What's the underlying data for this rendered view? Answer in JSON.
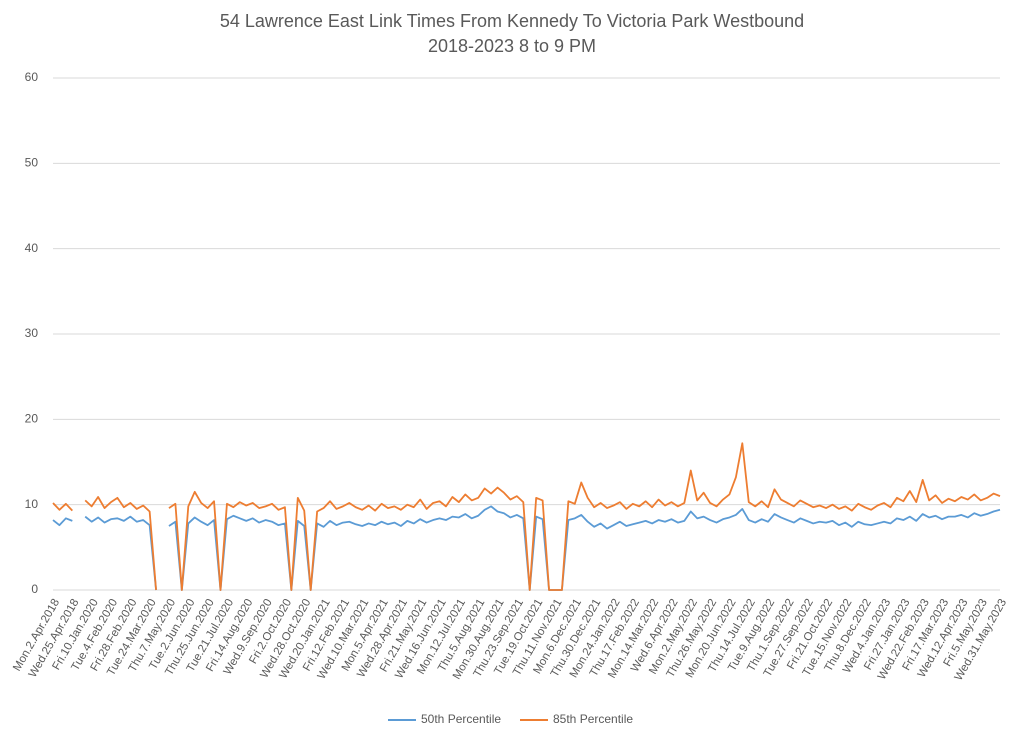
{
  "chart_data": {
    "type": "line",
    "title": "54 Lawrence East Link Times From Kennedy To Victoria Park Westbound",
    "subtitle": "2018-2023 8 to 9 PM",
    "categories": [
      "Mon.2.Apr.2018",
      null,
      null,
      "Wed.25.Apr.2018",
      null,
      null,
      "Fri.10.Jan.2020",
      null,
      null,
      "Tue.4.Feb.2020",
      null,
      null,
      "Fri.28.Feb.2020",
      null,
      null,
      "Tue.24.Mar.2020",
      null,
      null,
      "Thu.7.May.2020",
      null,
      null,
      "Tue.2.Jun.2020",
      null,
      null,
      "Thu.25.Jun.2020",
      null,
      null,
      "Tue.21.Jul.2020",
      null,
      null,
      "Fri.14.Aug.2020",
      null,
      null,
      "Wed.9.Sep.2020",
      null,
      null,
      "Fri.2.Oct.2020",
      null,
      null,
      "Wed.28.Oct.2020",
      null,
      null,
      "Wed.20.Jan.2021",
      null,
      null,
      "Fri.12.Feb.2021",
      null,
      null,
      "Wed.10.Mar.2021",
      null,
      null,
      "Mon.5.Apr.2021",
      null,
      null,
      "Wed.28.Apr.2021",
      null,
      null,
      "Fri.21.May.2021",
      null,
      null,
      "Wed.16.Jun.2021",
      null,
      null,
      "Mon.12.Jul.2021",
      null,
      null,
      "Thu.5.Aug.2021",
      null,
      null,
      "Mon.30.Aug.2021",
      null,
      null,
      "Thu.23.Sep.2021",
      null,
      null,
      "Tue.19.Oct.2021",
      null,
      null,
      "Thu.11.Nov.2021",
      null,
      null,
      "Mon.6.Dec.2021",
      null,
      null,
      "Thu.30.Dec.2021",
      null,
      null,
      "Mon.24.Jan.2022",
      null,
      null,
      "Thu.17.Feb.2022",
      null,
      null,
      "Mon.14.Mar.2022",
      null,
      null,
      "Wed.6.Apr.2022",
      null,
      null,
      "Mon.2.May.2022",
      null,
      null,
      "Thu.26.May.2022",
      null,
      null,
      "Mon.20.Jun.2022",
      null,
      null,
      "Thu.14.Jul.2022",
      null,
      null,
      "Tue.9.Aug.2022",
      null,
      null,
      "Thu.1.Sep.2022",
      null,
      null,
      "Tue.27.Sep.2022",
      null,
      null,
      "Fri.21.Oct.2022",
      null,
      null,
      "Tue.15.Nov.2022",
      null,
      null,
      "Thu.8.Dec.2022",
      null,
      null,
      "Wed.4.Jan.2023",
      null,
      null,
      "Fri.27.Jan.2023",
      null,
      null,
      "Wed.22.Feb.2023",
      null,
      null,
      "Fri.17.Mar.2023",
      null,
      null,
      "Wed.12.Apr.2023",
      null,
      null,
      "Fri.5.May.2023",
      null,
      null,
      "Wed.31.May.2023"
    ],
    "series": [
      {
        "name": "50th Percentile",
        "color": "#5b9bd5",
        "values": [
          8.2,
          7.6,
          8.4,
          8.1,
          null,
          8.6,
          8.0,
          8.5,
          7.9,
          8.3,
          8.4,
          8.1,
          8.6,
          8.0,
          8.2,
          7.6,
          0,
          null,
          7.5,
          8.0,
          0,
          7.8,
          8.5,
          8.0,
          7.6,
          8.2,
          0,
          8.3,
          8.7,
          8.4,
          8.1,
          8.4,
          7.9,
          8.2,
          8.0,
          7.6,
          7.8,
          0,
          8.1,
          7.5,
          0,
          7.8,
          7.4,
          8.1,
          7.6,
          7.9,
          8.0,
          7.7,
          7.5,
          7.8,
          7.6,
          8.0,
          7.7,
          7.9,
          7.5,
          8.1,
          7.8,
          8.3,
          7.9,
          8.2,
          8.4,
          8.2,
          8.6,
          8.5,
          8.9,
          8.4,
          8.7,
          9.4,
          9.8,
          9.2,
          9.0,
          8.5,
          8.8,
          8.4,
          0,
          8.6,
          8.3,
          0,
          0,
          0,
          8.2,
          8.4,
          8.8,
          8.0,
          7.4,
          7.8,
          7.2,
          7.6,
          8.0,
          7.5,
          7.7,
          7.9,
          8.1,
          7.8,
          8.2,
          8.0,
          8.3,
          7.9,
          8.1,
          9.2,
          8.4,
          8.6,
          8.2,
          7.9,
          8.3,
          8.5,
          8.8,
          9.5,
          8.2,
          7.9,
          8.3,
          8.0,
          8.9,
          8.5,
          8.2,
          7.9,
          8.4,
          8.1,
          7.8,
          8.0,
          7.9,
          8.1,
          7.6,
          7.9,
          7.4,
          8.0,
          7.7,
          7.6,
          7.8,
          8.0,
          7.8,
          8.4,
          8.2,
          8.6,
          8.1,
          8.9,
          8.5,
          8.7,
          8.3,
          8.6,
          8.6,
          8.8,
          8.5,
          9.0,
          8.7,
          8.9,
          9.2,
          9.4
        ]
      },
      {
        "name": "85th Percentile",
        "color": "#ed7d31",
        "values": [
          10.2,
          9.4,
          10.1,
          9.3,
          null,
          10.5,
          9.8,
          10.9,
          9.6,
          10.3,
          10.8,
          9.7,
          10.2,
          9.5,
          9.9,
          9.2,
          0,
          null,
          9.6,
          10.1,
          0,
          9.8,
          11.5,
          10.2,
          9.6,
          10.4,
          0,
          10.1,
          9.7,
          10.3,
          9.9,
          10.2,
          9.6,
          9.8,
          10.1,
          9.4,
          9.7,
          0,
          10.8,
          9.3,
          0,
          9.2,
          9.6,
          10.4,
          9.5,
          9.8,
          10.2,
          9.7,
          9.4,
          9.9,
          9.3,
          10.1,
          9.6,
          9.8,
          9.4,
          10.0,
          9.7,
          10.6,
          9.5,
          10.2,
          10.4,
          9.8,
          10.9,
          10.3,
          11.2,
          10.5,
          10.8,
          11.9,
          11.3,
          12.0,
          11.4,
          10.6,
          11.0,
          10.3,
          0,
          10.8,
          10.5,
          0,
          0,
          0,
          10.4,
          10.1,
          12.6,
          10.8,
          9.7,
          10.2,
          9.6,
          9.9,
          10.3,
          9.5,
          10.1,
          9.8,
          10.4,
          9.7,
          10.6,
          9.9,
          10.3,
          9.8,
          10.2,
          14.0,
          10.5,
          11.4,
          10.2,
          9.8,
          10.6,
          11.2,
          13.2,
          17.2,
          10.3,
          9.8,
          10.4,
          9.7,
          11.8,
          10.6,
          10.2,
          9.8,
          10.5,
          10.1,
          9.7,
          9.9,
          9.6,
          10.0,
          9.5,
          9.8,
          9.3,
          10.1,
          9.7,
          9.4,
          9.9,
          10.2,
          9.7,
          10.8,
          10.4,
          11.6,
          10.3,
          12.9,
          10.5,
          11.1,
          10.2,
          10.7,
          10.4,
          10.9,
          10.6,
          11.2,
          10.5,
          10.8,
          11.3,
          11.0
        ]
      }
    ],
    "ylim": [
      0,
      60
    ],
    "yticks": [
      0,
      10,
      20,
      30,
      40,
      50,
      60
    ],
    "grid": true,
    "legend": "bottom"
  }
}
